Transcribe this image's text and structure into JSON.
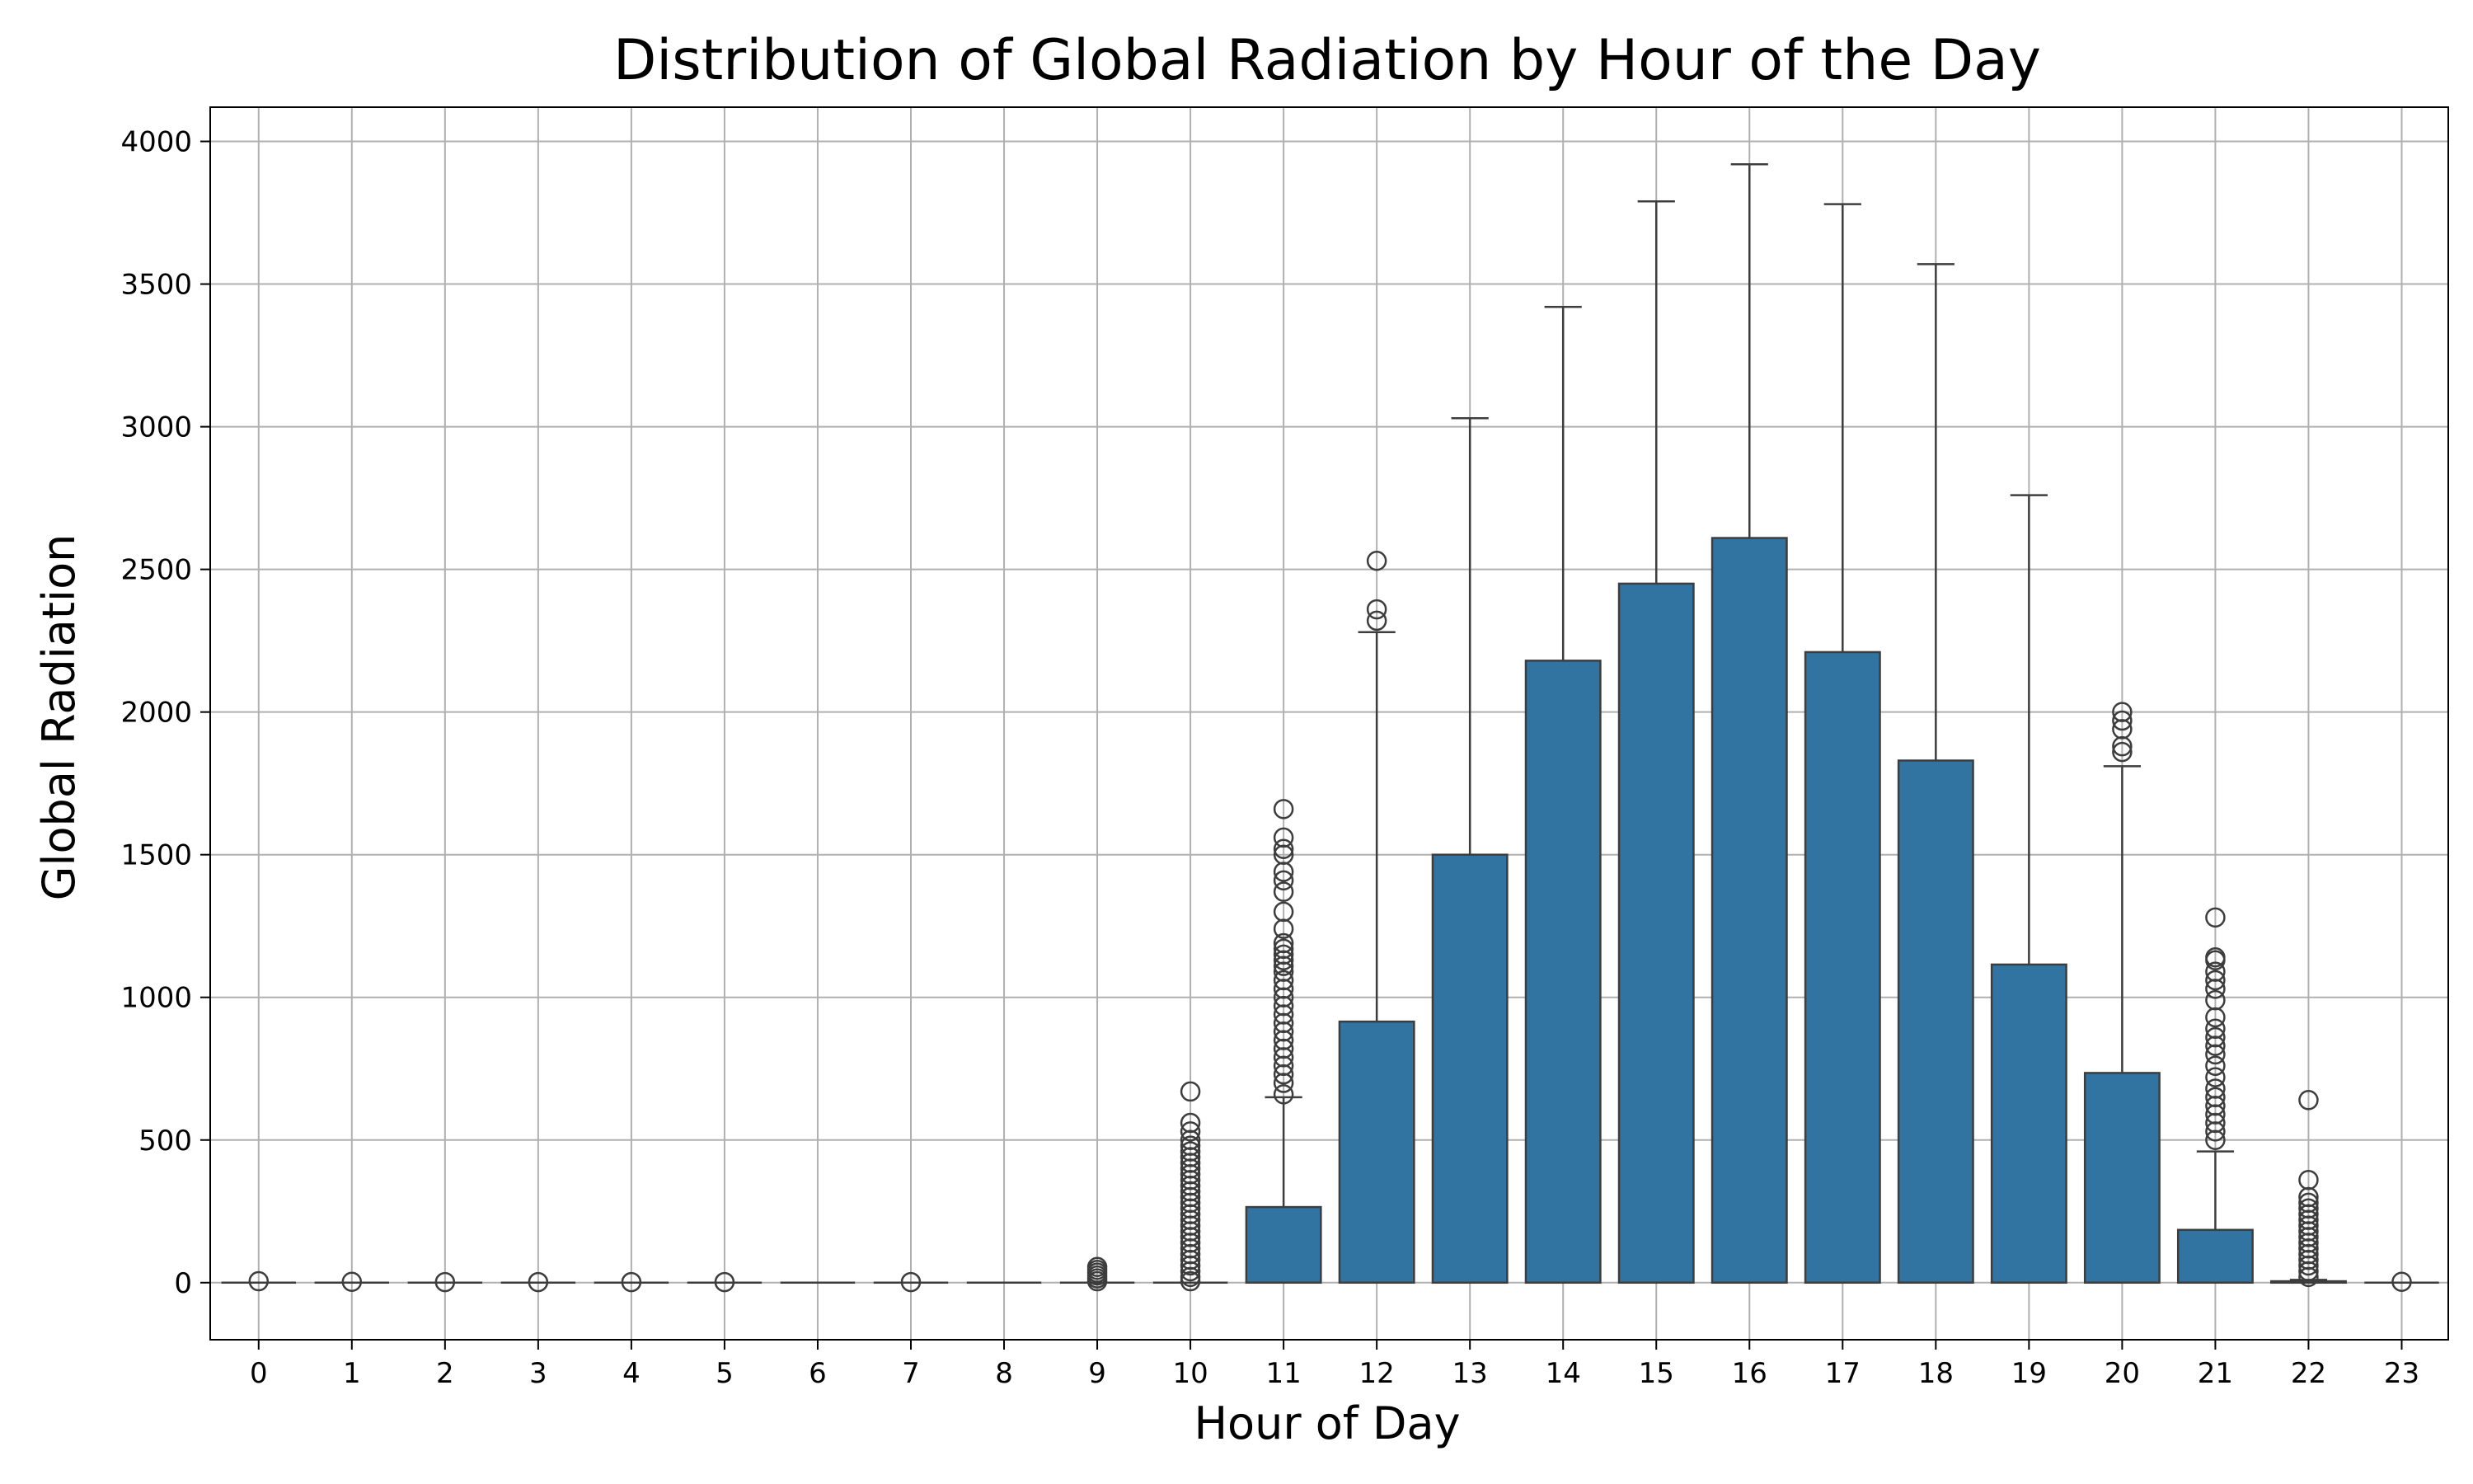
{
  "chart_data": {
    "type": "box",
    "title": "Distribution of Global Radiation by Hour of the Day",
    "xlabel": "Hour of Day",
    "ylabel": "Global Radiation",
    "ylim": [
      -200,
      4120
    ],
    "yticks": [
      0,
      500,
      1000,
      1500,
      2000,
      2500,
      3000,
      3500,
      4000
    ],
    "grid": true,
    "colors": {
      "box_fill": "#3274a1",
      "box_edge": "#3d3d3d",
      "grid": "#b0b0b0"
    },
    "categories": [
      "0",
      "1",
      "2",
      "3",
      "4",
      "5",
      "6",
      "7",
      "8",
      "9",
      "10",
      "11",
      "12",
      "13",
      "14",
      "15",
      "16",
      "17",
      "18",
      "19",
      "20",
      "21",
      "22",
      "23"
    ],
    "boxes": [
      {
        "hour": "0",
        "q1": 0,
        "median": 0,
        "q3": 0,
        "whisker_low": 0,
        "whisker_high": 0,
        "outliers": [
          5
        ]
      },
      {
        "hour": "1",
        "q1": 0,
        "median": 0,
        "q3": 0,
        "whisker_low": 0,
        "whisker_high": 0,
        "outliers": [
          3
        ]
      },
      {
        "hour": "2",
        "q1": 0,
        "median": 0,
        "q3": 0,
        "whisker_low": 0,
        "whisker_high": 0,
        "outliers": [
          2
        ]
      },
      {
        "hour": "3",
        "q1": 0,
        "median": 0,
        "q3": 0,
        "whisker_low": 0,
        "whisker_high": 0,
        "outliers": [
          2
        ]
      },
      {
        "hour": "4",
        "q1": 0,
        "median": 0,
        "q3": 0,
        "whisker_low": 0,
        "whisker_high": 0,
        "outliers": [
          2
        ]
      },
      {
        "hour": "5",
        "q1": 0,
        "median": 0,
        "q3": 0,
        "whisker_low": 0,
        "whisker_high": 0,
        "outliers": [
          2
        ]
      },
      {
        "hour": "6",
        "q1": 0,
        "median": 0,
        "q3": 0,
        "whisker_low": 0,
        "whisker_high": 0,
        "outliers": []
      },
      {
        "hour": "7",
        "q1": 0,
        "median": 0,
        "q3": 0,
        "whisker_low": 0,
        "whisker_high": 0,
        "outliers": [
          2
        ]
      },
      {
        "hour": "8",
        "q1": 0,
        "median": 0,
        "q3": 0,
        "whisker_low": 0,
        "whisker_high": 0,
        "outliers": []
      },
      {
        "hour": "9",
        "q1": 0,
        "median": 0,
        "q3": 0,
        "whisker_low": 0,
        "whisker_high": 0,
        "outliers": [
          5,
          15,
          25,
          35,
          45,
          55
        ]
      },
      {
        "hour": "10",
        "q1": 0,
        "median": 0,
        "q3": 0,
        "whisker_low": 0,
        "whisker_high": 0,
        "outliers": [
          5,
          20,
          40,
          60,
          80,
          100,
          120,
          140,
          160,
          180,
          200,
          220,
          240,
          260,
          280,
          300,
          320,
          340,
          360,
          380,
          400,
          420,
          440,
          460,
          480,
          500,
          530,
          560,
          670
        ]
      },
      {
        "hour": "11",
        "q1": 0,
        "median": 0,
        "q3": 265,
        "whisker_low": 0,
        "whisker_high": 650,
        "outliers": [
          660,
          700,
          730,
          760,
          790,
          820,
          850,
          880,
          910,
          940,
          970,
          1000,
          1030,
          1060,
          1090,
          1110,
          1130,
          1150,
          1170,
          1190,
          1240,
          1300,
          1370,
          1410,
          1440,
          1500,
          1520,
          1560,
          1660
        ]
      },
      {
        "hour": "12",
        "q1": 0,
        "median": 0,
        "q3": 915,
        "whisker_low": 0,
        "whisker_high": 2280,
        "outliers": [
          2320,
          2360,
          2530
        ]
      },
      {
        "hour": "13",
        "q1": 0,
        "median": 0,
        "q3": 1500,
        "whisker_low": 0,
        "whisker_high": 3030,
        "outliers": []
      },
      {
        "hour": "14",
        "q1": 0,
        "median": 0,
        "q3": 2180,
        "whisker_low": 0,
        "whisker_high": 3420,
        "outliers": []
      },
      {
        "hour": "15",
        "q1": 0,
        "median": 0,
        "q3": 2450,
        "whisker_low": 0,
        "whisker_high": 3790,
        "outliers": []
      },
      {
        "hour": "16",
        "q1": 0,
        "median": 0,
        "q3": 2610,
        "whisker_low": 0,
        "whisker_high": 3920,
        "outliers": []
      },
      {
        "hour": "17",
        "q1": 0,
        "median": 0,
        "q3": 2210,
        "whisker_low": 0,
        "whisker_high": 3780,
        "outliers": []
      },
      {
        "hour": "18",
        "q1": 0,
        "median": 0,
        "q3": 1830,
        "whisker_low": 0,
        "whisker_high": 3570,
        "outliers": []
      },
      {
        "hour": "19",
        "q1": 0,
        "median": 0,
        "q3": 1115,
        "whisker_low": 0,
        "whisker_high": 2760,
        "outliers": []
      },
      {
        "hour": "20",
        "q1": 0,
        "median": 0,
        "q3": 735,
        "whisker_low": 0,
        "whisker_high": 1810,
        "outliers": [
          1860,
          1880,
          1940,
          1970,
          2000
        ]
      },
      {
        "hour": "21",
        "q1": 0,
        "median": 0,
        "q3": 185,
        "whisker_low": 0,
        "whisker_high": 460,
        "outliers": [
          500,
          530,
          560,
          590,
          620,
          650,
          680,
          720,
          760,
          800,
          830,
          860,
          890,
          930,
          990,
          1030,
          1060,
          1090,
          1130,
          1140,
          1280
        ]
      },
      {
        "hour": "22",
        "q1": 0,
        "median": 0,
        "q3": 5,
        "whisker_low": 0,
        "whisker_high": 10,
        "outliers": [
          20,
          40,
          60,
          80,
          100,
          120,
          140,
          160,
          180,
          200,
          220,
          240,
          260,
          280,
          300,
          360,
          640
        ]
      },
      {
        "hour": "23",
        "q1": 0,
        "median": 0,
        "q3": 0,
        "whisker_low": 0,
        "whisker_high": 0,
        "outliers": [
          3
        ]
      }
    ]
  }
}
